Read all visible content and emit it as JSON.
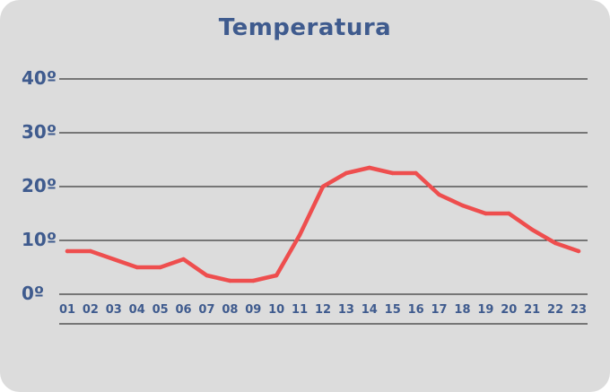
{
  "chart_data": {
    "type": "line",
    "title": "Temperatura",
    "xlabel": "",
    "ylabel": "",
    "categories": [
      "01",
      "02",
      "03",
      "04",
      "05",
      "06",
      "07",
      "08",
      "09",
      "10",
      "11",
      "12",
      "13",
      "14",
      "15",
      "16",
      "17",
      "18",
      "19",
      "20",
      "21",
      "22",
      "23"
    ],
    "values": [
      8,
      8,
      6.5,
      5,
      5,
      6.5,
      3.5,
      2.5,
      2.5,
      3.5,
      11,
      20,
      22.5,
      23.5,
      22.5,
      22.5,
      18.5,
      16.5,
      15,
      15,
      12,
      9.5,
      8
    ],
    "y_ticks": [
      0,
      10,
      20,
      30,
      40
    ],
    "y_tick_labels": [
      "0º",
      "10º",
      "20º",
      "30º",
      "40º"
    ],
    "ylim": [
      0,
      40
    ],
    "grid": true,
    "legend": "none",
    "colors": {
      "line": "#ee4e4e",
      "text": "#3f5b8e",
      "background": "#dcdcdc",
      "grid": "#111111"
    }
  }
}
